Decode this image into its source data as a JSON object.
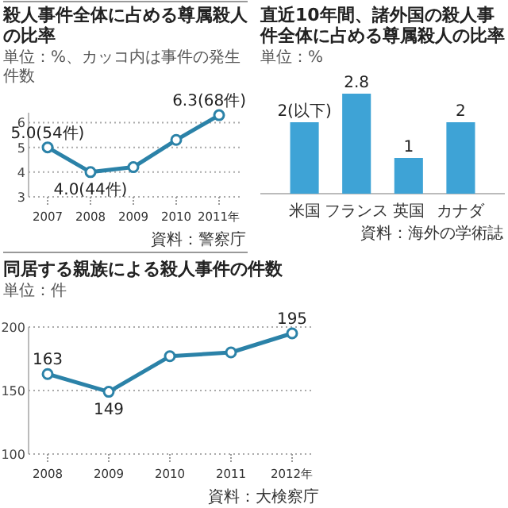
{
  "chart_data": [
    {
      "type": "line",
      "title": "殺人事件全体に占める尊属殺人の比率",
      "subtitle": "単位：%、カッコ内は事件の発生件数",
      "categories": [
        "2007",
        "2008",
        "2009",
        "2010",
        "2011年"
      ],
      "values": [
        5.0,
        4.0,
        4.2,
        5.3,
        6.3
      ],
      "value_labels": [
        "5.0(54件)",
        "4.0(44件)",
        null,
        null,
        "6.3(68件)"
      ],
      "color": "#2b82a8",
      "ylim": [
        3,
        6.4
      ],
      "yticks": [
        3,
        4,
        5,
        6
      ],
      "grid": "y",
      "marker": "circle",
      "annotations": [
        "資料：警察庁"
      ]
    },
    {
      "type": "bar",
      "title": "直近10年間、諸外国の殺人事件全体に占める尊属殺人の比率",
      "subtitle": "単位：%",
      "categories": [
        "米国",
        "フランス",
        "英国",
        "カナダ"
      ],
      "values": [
        2,
        2.8,
        1,
        2
      ],
      "value_labels": [
        "2(以下)",
        "2.8",
        "1",
        "2"
      ],
      "color": "#3ea3d6",
      "annotations": [
        "資料：海外の学術誌"
      ]
    },
    {
      "type": "line",
      "title": "同居する親族による殺人事件の件数",
      "subtitle": "単位：件",
      "categories": [
        "2008",
        "2009",
        "2010",
        "2011",
        "2012年"
      ],
      "values": [
        163,
        149,
        177,
        180,
        195
      ],
      "value_labels": [
        "163",
        "149",
        null,
        null,
        "195"
      ],
      "color": "#2b82a8",
      "ylim": [
        100,
        200
      ],
      "yticks": [
        100,
        150,
        200
      ],
      "grid": "y",
      "marker": "circle",
      "annotations": [
        "資料：大検察庁"
      ]
    }
  ]
}
